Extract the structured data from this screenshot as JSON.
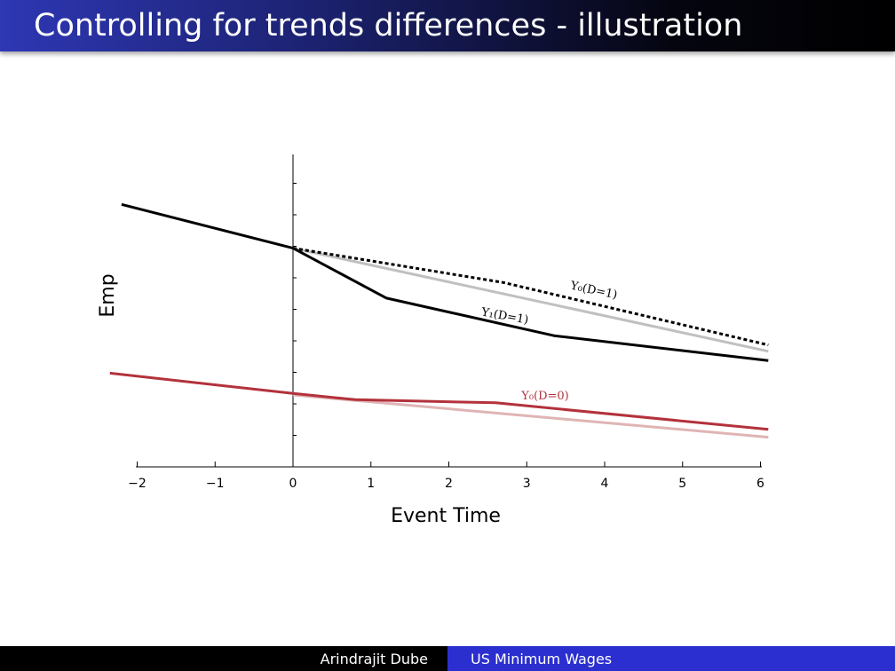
{
  "slide": {
    "title": "Controlling for trends differences - illustration",
    "footer_author": "Arindrajit Dube",
    "footer_talk": "US Minimum Wages",
    "colors": {
      "title_gradient_start": "#2e37b4",
      "title_gradient_end": "#000000",
      "footer_left_bg": "#000000",
      "footer_right_bg": "#2b2fcf"
    }
  },
  "chart_data": {
    "type": "line",
    "xlabel": "Event Time",
    "ylabel": "Emp",
    "xlim": [
      -2,
      6
    ],
    "ylim": [
      0,
      10
    ],
    "x_ticks": [
      "−2",
      "−1",
      "0",
      "1",
      "2",
      "3",
      "4",
      "5",
      "6"
    ],
    "x_tick_values": [
      -2,
      -1,
      0,
      1,
      2,
      3,
      4,
      5,
      6
    ],
    "y_ticks_labeled": false,
    "grid": false,
    "legend": "none (series labeled inline)",
    "series": [
      {
        "key": "treated_observed",
        "name": "Y₁(D=1)",
        "color": "#000000",
        "style": "solid",
        "points": [
          [
            -2.2,
            8.4
          ],
          [
            0,
            7.0
          ],
          [
            1.2,
            5.4
          ],
          [
            3.35,
            4.2
          ],
          [
            6.1,
            3.4
          ]
        ]
      },
      {
        "key": "treated_counterfactual",
        "name": "Y₀(D=1)",
        "color": "#000000",
        "style": "dashed",
        "points": [
          [
            0,
            7.0
          ],
          [
            2.7,
            5.9
          ],
          [
            6.1,
            3.9
          ]
        ]
      },
      {
        "key": "treated_trend",
        "name": "",
        "color": "#c0c0c0",
        "style": "solid",
        "points": [
          [
            0,
            7.0
          ],
          [
            6.1,
            3.7
          ]
        ]
      },
      {
        "key": "control_observed",
        "name": "Y₀(D=0)",
        "color": "#b3323c",
        "style": "solid",
        "points": [
          [
            -2.35,
            3.0
          ],
          [
            0,
            2.35
          ],
          [
            0.8,
            2.15
          ],
          [
            2.6,
            2.05
          ],
          [
            6.1,
            1.2
          ]
        ]
      },
      {
        "key": "control_trend",
        "name": "",
        "color": "#e0b4b4",
        "style": "solid",
        "points": [
          [
            0,
            2.3
          ],
          [
            6.1,
            0.95
          ]
        ]
      }
    ]
  }
}
